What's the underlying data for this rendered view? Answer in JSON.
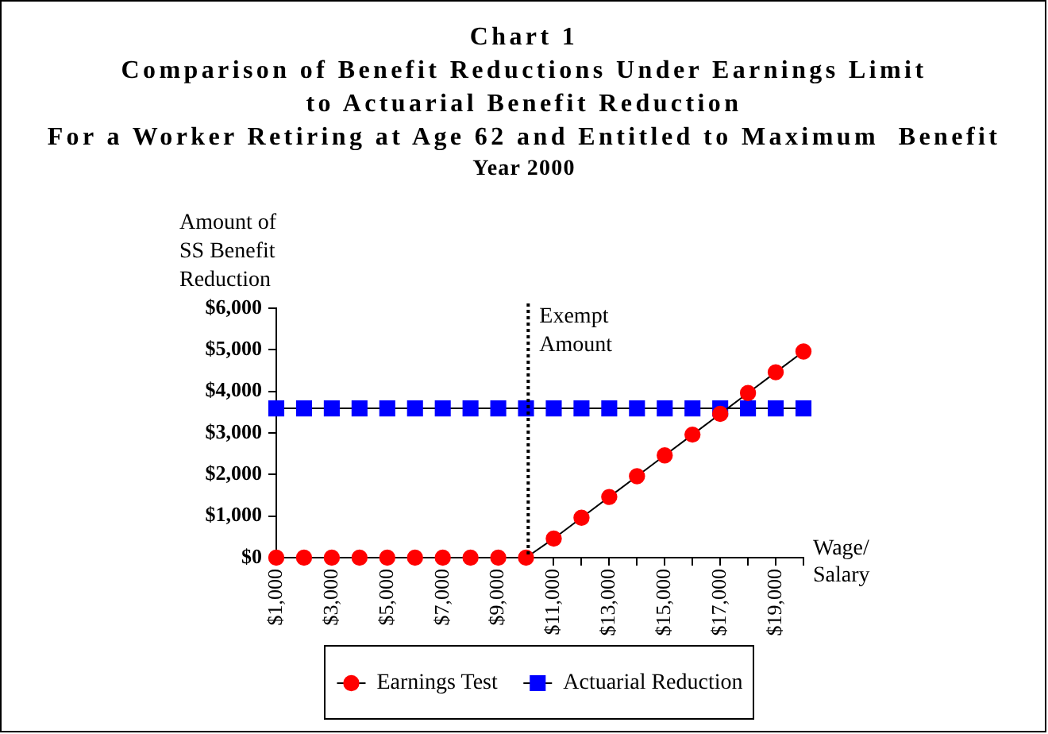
{
  "chart_data": {
    "type": "line",
    "title": "Chart 1\nComparison of Benefit Reductions Under Earnings Limit\nto Actuarial Benefit Reduction\nFor a Worker Retiring at Age 62 and Entitled to Maximum  Benefit",
    "subtitle": "Year 2000",
    "xlabel": "Wage/\nSalary",
    "ylabel": "Amount of\nSS Benefit\nReduction",
    "x": [
      1000,
      2000,
      3000,
      4000,
      5000,
      6000,
      7000,
      8000,
      9000,
      10000,
      11000,
      12000,
      13000,
      14000,
      15000,
      16000,
      17000,
      18000,
      19000,
      20000
    ],
    "xlim": [
      1000,
      20000
    ],
    "xticks": [
      {
        "value": 1000,
        "label": "$1,000"
      },
      {
        "value": 2000,
        "label": null
      },
      {
        "value": 3000,
        "label": "$3,000"
      },
      {
        "value": 4000,
        "label": null
      },
      {
        "value": 5000,
        "label": "$5,000"
      },
      {
        "value": 6000,
        "label": null
      },
      {
        "value": 7000,
        "label": "$7,000"
      },
      {
        "value": 8000,
        "label": null
      },
      {
        "value": 9000,
        "label": "$9,000"
      },
      {
        "value": 10000,
        "label": null
      },
      {
        "value": 11000,
        "label": "$11,000"
      },
      {
        "value": 12000,
        "label": null
      },
      {
        "value": 13000,
        "label": "$13,000"
      },
      {
        "value": 14000,
        "label": null
      },
      {
        "value": 15000,
        "label": "$15,000"
      },
      {
        "value": 16000,
        "label": null
      },
      {
        "value": 17000,
        "label": "$17,000"
      },
      {
        "value": 18000,
        "label": null
      },
      {
        "value": 19000,
        "label": "$19,000"
      },
      {
        "value": 20000,
        "label": null
      }
    ],
    "ylim": [
      0,
      6000
    ],
    "yticks": [
      {
        "value": 0,
        "label": "$0"
      },
      {
        "value": 1000,
        "label": "$1,000"
      },
      {
        "value": 2000,
        "label": "$2,000"
      },
      {
        "value": 3000,
        "label": "$3,000"
      },
      {
        "value": 4000,
        "label": "$4,000"
      },
      {
        "value": 5000,
        "label": "$5,000"
      },
      {
        "value": 6000,
        "label": "$6,000"
      }
    ],
    "series": [
      {
        "name": "Earnings Test",
        "color": "#ff0000",
        "marker": "circle",
        "values": [
          0,
          0,
          0,
          0,
          0,
          0,
          0,
          0,
          0,
          0,
          460,
          960,
          1460,
          1960,
          2460,
          2960,
          3460,
          3960,
          4460,
          4960
        ]
      },
      {
        "name": "Actuarial Reduction",
        "color": "#0000ff",
        "marker": "square",
        "values": [
          3590,
          3590,
          3590,
          3590,
          3590,
          3590,
          3590,
          3590,
          3590,
          3590,
          3590,
          3590,
          3590,
          3590,
          3590,
          3590,
          3590,
          3590,
          3590,
          3590
        ]
      }
    ],
    "ref_lines": [
      {
        "axis": "x",
        "value": 10080,
        "label": "Exempt\nAmount",
        "color": "#000000",
        "line_style": "dotted"
      }
    ],
    "legend": "bottom"
  }
}
